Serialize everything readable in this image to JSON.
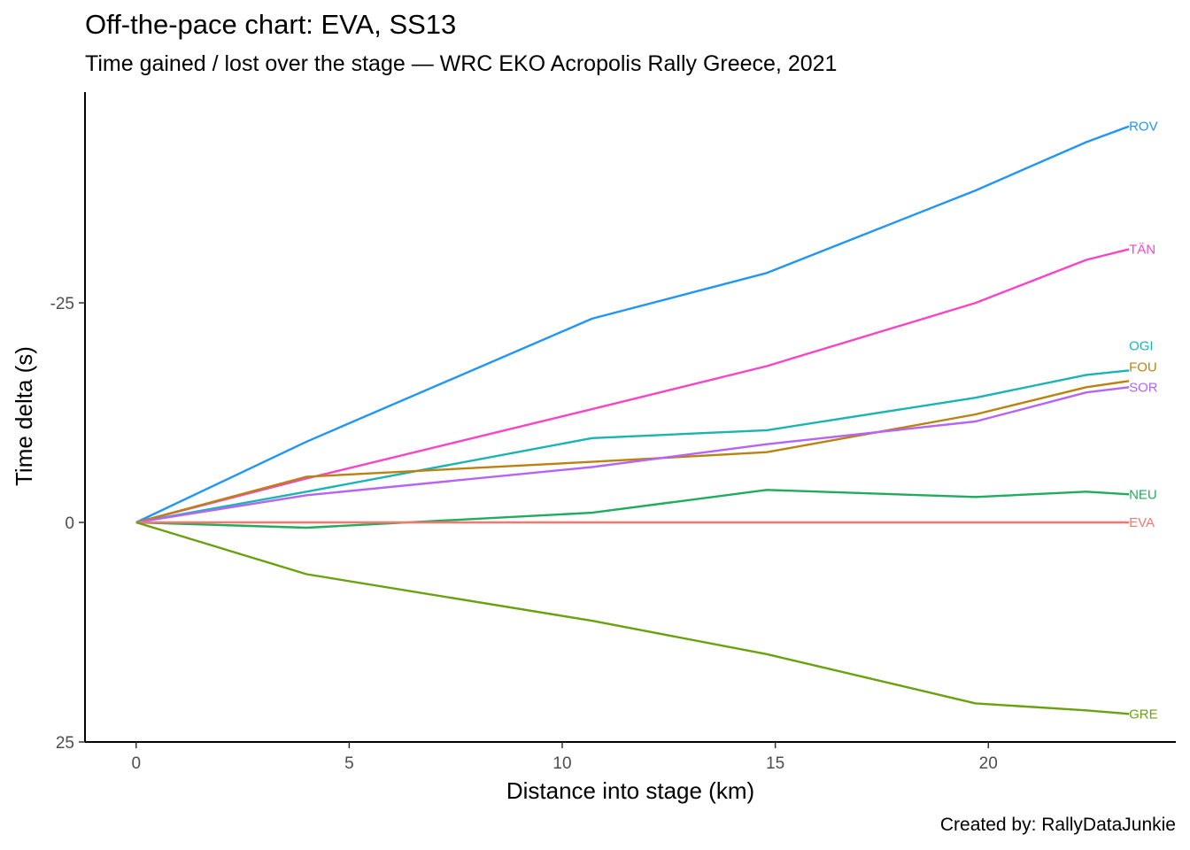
{
  "title": "Off-the-pace chart: EVA, SS13",
  "subtitle": "Time gained / lost over the stage — WRC EKO Acropolis Rally Greece, 2021",
  "caption": "Created by: RallyDataJunkie",
  "chart_data": {
    "type": "line",
    "xlabel": "Distance into stage (km)",
    "ylabel": "Time delta (s)",
    "xlim": [
      -1.2,
      24.4
    ],
    "ylim": [
      25,
      -49
    ],
    "y_reversed": true,
    "x_ticks": [
      0,
      5,
      10,
      15,
      20
    ],
    "x_tick_labels": [
      "0",
      "5",
      "10",
      "15",
      "20"
    ],
    "y_ticks": [
      -25,
      0,
      25
    ],
    "y_tick_labels": [
      "-25",
      "0",
      "25"
    ],
    "grid": false,
    "legend": "none",
    "series_labels_at_line_end": true,
    "series": [
      {
        "name": "ROV",
        "color": "#2196F3",
        "x": [
          0,
          4.0,
          10.7,
          14.8,
          19.7,
          22.3,
          23.3
        ],
        "y": [
          0,
          -9.2,
          -23.2,
          -28.4,
          -37.8,
          -43.3,
          -45.1
        ]
      },
      {
        "name": "TÄN",
        "color": "#F646C6",
        "x": [
          0,
          4.0,
          10.7,
          14.8,
          19.7,
          22.3,
          23.3
        ],
        "y": [
          0,
          -5.0,
          -12.9,
          -17.8,
          -25.0,
          -29.9,
          -31.1
        ]
      },
      {
        "name": "OGI",
        "color": "#1BB3B3",
        "x": [
          0,
          4.0,
          10.7,
          14.8,
          19.7,
          22.3,
          23.3
        ],
        "y": [
          0,
          -3.5,
          -9.6,
          -10.5,
          -14.2,
          -16.8,
          -17.3
        ]
      },
      {
        "name": "FOU",
        "color": "#BA8211",
        "x": [
          0,
          4.0,
          10.7,
          14.8,
          19.7,
          22.3,
          23.3
        ],
        "y": [
          0,
          -5.2,
          -6.9,
          -8.0,
          -12.3,
          -15.4,
          -16.1
        ]
      },
      {
        "name": "SOR",
        "color": "#B663F6",
        "x": [
          0,
          4.0,
          10.7,
          14.8,
          19.7,
          22.3,
          23.3
        ],
        "y": [
          0,
          -3.1,
          -6.3,
          -8.9,
          -11.5,
          -14.8,
          -15.4
        ]
      },
      {
        "name": "NEU",
        "color": "#1FAD5D",
        "x": [
          0,
          4.0,
          10.7,
          14.8,
          19.7,
          22.3,
          23.3
        ],
        "y": [
          0,
          0.6,
          -1.1,
          -3.7,
          -2.9,
          -3.5,
          -3.2
        ]
      },
      {
        "name": "EVA",
        "color": "#F8766D",
        "x": [
          0,
          4.0,
          10.7,
          14.8,
          19.7,
          22.3,
          23.3
        ],
        "y": [
          0,
          0,
          0,
          0,
          0,
          0,
          0
        ]
      },
      {
        "name": "GRE",
        "color": "#6AA10F",
        "x": [
          0,
          4.0,
          10.7,
          14.8,
          19.7,
          22.3,
          23.3
        ],
        "y": [
          0,
          5.9,
          11.2,
          15.0,
          20.6,
          21.4,
          21.8
        ]
      }
    ]
  }
}
